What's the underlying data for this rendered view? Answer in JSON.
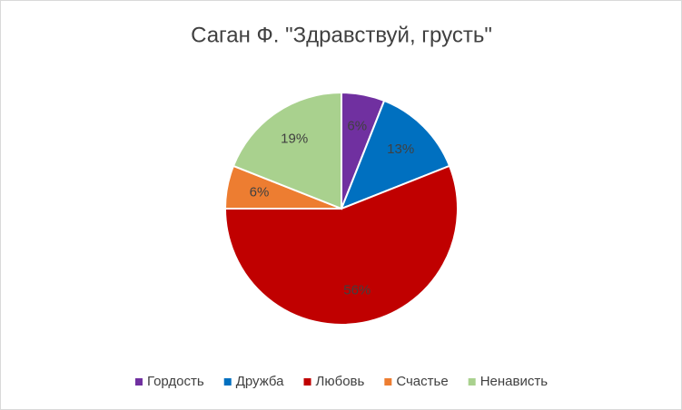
{
  "chart_data": {
    "type": "pie",
    "title": "Саган Ф. \"Здравствуй, грусть\"",
    "categories": [
      "Гордость",
      "Дружба",
      "Любовь",
      "Счастье",
      "Ненависть"
    ],
    "values": [
      6,
      13,
      56,
      6,
      19
    ],
    "value_labels": [
      "6%",
      "13%",
      "56%",
      "6%",
      "19%"
    ],
    "colors": [
      "#7030a0",
      "#0070c0",
      "#c00000",
      "#ed7d31",
      "#a9d18e"
    ],
    "legend": "bottom"
  }
}
